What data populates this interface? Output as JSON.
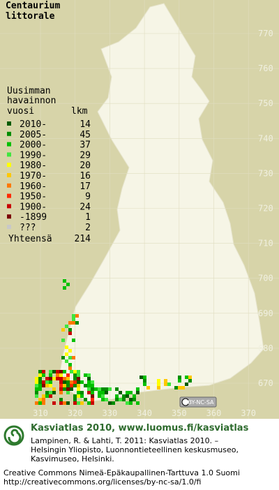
{
  "title": [
    "Centaurium",
    "littorale"
  ],
  "legend": {
    "heading": [
      "Uusimman",
      "havainnon",
      "vuosi"
    ],
    "count_heading": "lkm",
    "rows": [
      {
        "label": "2010-",
        "count": 14,
        "color": "#005a00"
      },
      {
        "label": "2005-",
        "count": 45,
        "color": "#008c00"
      },
      {
        "label": "2000-",
        "count": 37,
        "color": "#00c000"
      },
      {
        "label": "1990-",
        "count": 29,
        "color": "#3ee63e"
      },
      {
        "label": "1980-",
        "count": 20,
        "color": "#ffff00"
      },
      {
        "label": "1970-",
        "count": 16,
        "color": "#ffc800"
      },
      {
        "label": "1960-",
        "count": 17,
        "color": "#ff7800"
      },
      {
        "label": "1950-",
        "count": 9,
        "color": "#ff2800"
      },
      {
        "label": "1900-",
        "count": 24,
        "color": "#c80000"
      },
      {
        "label": "-1899",
        "count": 1,
        "color": "#7a0000"
      },
      {
        "label": "???",
        "count": 2,
        "color": "#c8c8c8"
      }
    ],
    "total": {
      "label": "Yhteensä",
      "count": 214
    }
  },
  "grid": {
    "y_labels": [
      770,
      760,
      750,
      740,
      730,
      720,
      710,
      700,
      690,
      680,
      670
    ],
    "x_labels": [
      310,
      320,
      330,
      340,
      350,
      360,
      370
    ]
  },
  "license_badge": "BY-NC-SA",
  "footer": {
    "headline": "Kasviatlas 2010, www.luomus.fi/kasviatlas",
    "citation": [
      "Lampinen, R. & Lahti, T. 2011: Kasviatlas 2010. –",
      "Helsingin Yliopisto, Luonnontieteellinen keskusmuseo,",
      "Kasvimuseo, Helsinki."
    ],
    "license": [
      "Creative Commons Nimeä-Epäkaupallinen-Tarttuva 1.0 Suomi",
      "http://creativecommons.org/licenses/by-nc-sa/1.0/fi"
    ]
  }
}
